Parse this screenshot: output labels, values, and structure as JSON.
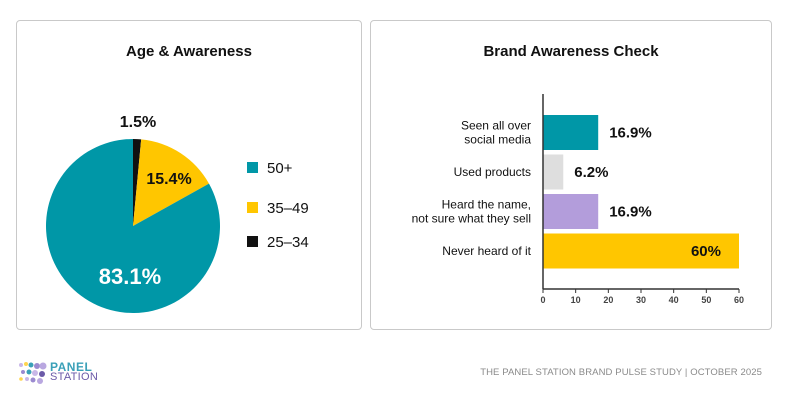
{
  "chart_data": [
    {
      "type": "pie",
      "title": "Age & Awareness",
      "categories": [
        "50+",
        "35–49",
        "25–34"
      ],
      "values": [
        83.1,
        15.4,
        1.5
      ],
      "labels": [
        "83.1%",
        "15.4%",
        "1.5%"
      ],
      "colors": [
        "#0097a7",
        "#ffc600",
        "#111111"
      ],
      "legend_position": "right",
      "legend": [
        "50+",
        "35–49",
        "25–34"
      ]
    },
    {
      "type": "bar",
      "orientation": "horizontal",
      "title": "Brand Awareness Check",
      "categories": [
        [
          "Seen all over",
          "social media"
        ],
        [
          "Used products"
        ],
        [
          "Heard the name,",
          "not sure what they sell"
        ],
        [
          "Never heard of it"
        ]
      ],
      "values": [
        16.9,
        6.2,
        16.9,
        60
      ],
      "labels": [
        "16.9%",
        "6.2%",
        "16.9%",
        "60%"
      ],
      "colors": [
        "#0097a7",
        "#dedede",
        "#b39ddb",
        "#ffc600"
      ],
      "xlim": [
        0,
        60
      ],
      "xticks": [
        "0",
        "10",
        "20",
        "30",
        "40",
        "50",
        "60"
      ],
      "xlabel": "",
      "ylabel": "",
      "grid": false
    }
  ],
  "footer": {
    "logo_line1": "PANEL",
    "logo_line2": "STATION",
    "credit": "THE PANEL STATION BRAND PULSE STUDY  |  OCTOBER 2025"
  }
}
